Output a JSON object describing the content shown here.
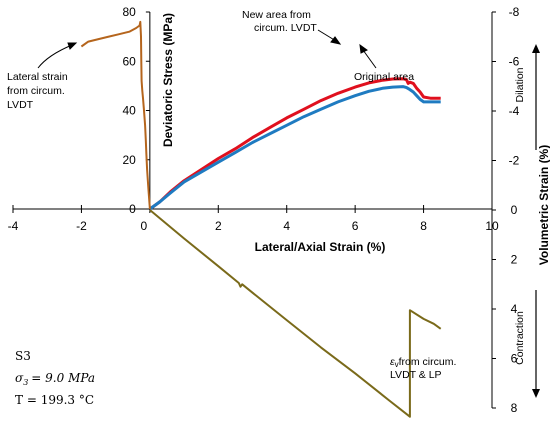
{
  "chart_data": {
    "type": "line",
    "x_axis": {
      "label": "Lateral/Axial Strain (%)",
      "range": [
        -4,
        10
      ],
      "ticks": [
        -4,
        -2,
        0,
        2,
        4,
        6,
        8,
        10
      ]
    },
    "y_left": {
      "label": "Deviatoric Stress (MPa)",
      "range": [
        0,
        80
      ],
      "ticks": [
        0,
        20,
        40,
        60,
        80
      ]
    },
    "y_right": {
      "label": "Volumetric  Strain (%)",
      "range": [
        8,
        -8
      ],
      "ticks": [
        -8,
        -6,
        -4,
        -2,
        0,
        2,
        4,
        6,
        8
      ],
      "tick_labels": [
        "-8",
        "-6",
        "-4",
        "-2",
        "0",
        "2",
        "4",
        "6",
        "8"
      ],
      "upper_label": "Dilation",
      "lower_label": "Contraction"
    },
    "series": [
      {
        "name": "New area from circum. LVDT",
        "axis": "left",
        "color": "#e0101e",
        "points": [
          [
            0,
            0
          ],
          [
            0.3,
            3
          ],
          [
            0.6,
            7
          ],
          [
            1,
            11.5
          ],
          [
            1.5,
            16
          ],
          [
            2,
            20.5
          ],
          [
            2.5,
            24.5
          ],
          [
            3,
            29
          ],
          [
            3.5,
            33
          ],
          [
            4,
            37
          ],
          [
            4.5,
            40.5
          ],
          [
            5,
            44
          ],
          [
            5.5,
            47
          ],
          [
            6,
            49.5
          ],
          [
            6.4,
            51.2
          ],
          [
            6.8,
            52.3
          ],
          [
            7.1,
            52.8
          ],
          [
            7.4,
            52.9
          ],
          [
            7.5,
            52.5
          ],
          [
            7.55,
            51
          ],
          [
            7.6,
            51.5
          ],
          [
            7.7,
            51
          ],
          [
            7.8,
            49
          ],
          [
            7.9,
            47.5
          ],
          [
            8,
            45.5
          ],
          [
            8.2,
            45
          ],
          [
            8.5,
            45
          ]
        ]
      },
      {
        "name": "Original area",
        "axis": "left",
        "color": "#1f7bc1",
        "points": [
          [
            0,
            0
          ],
          [
            0.3,
            3
          ],
          [
            0.6,
            6.5
          ],
          [
            1,
            11
          ],
          [
            1.5,
            15
          ],
          [
            2,
            19
          ],
          [
            2.5,
            23
          ],
          [
            3,
            27
          ],
          [
            3.5,
            30.5
          ],
          [
            4,
            34
          ],
          [
            4.5,
            37.5
          ],
          [
            5,
            40.5
          ],
          [
            5.5,
            43.5
          ],
          [
            6,
            46
          ],
          [
            6.4,
            47.8
          ],
          [
            6.8,
            49
          ],
          [
            7.1,
            49.5
          ],
          [
            7.4,
            49.7
          ],
          [
            7.5,
            49.3
          ],
          [
            7.6,
            48.5
          ],
          [
            7.7,
            47.5
          ],
          [
            7.8,
            46
          ],
          [
            7.9,
            44.5
          ],
          [
            8,
            43.5
          ],
          [
            8.2,
            43.5
          ],
          [
            8.5,
            43.5
          ]
        ]
      },
      {
        "name": "Lateral strain from circum. LVDT",
        "axis": "left",
        "color": "#b5651d",
        "points": [
          [
            -2,
            66
          ],
          [
            -1.8,
            68
          ],
          [
            -1.5,
            69
          ],
          [
            -1.2,
            70
          ],
          [
            -0.9,
            71
          ],
          [
            -0.6,
            72
          ],
          [
            -0.4,
            73.5
          ],
          [
            -0.3,
            74.5
          ],
          [
            -0.28,
            76
          ],
          [
            -0.26,
            70
          ],
          [
            -0.25,
            60
          ],
          [
            -0.24,
            52
          ],
          [
            -0.22,
            48
          ],
          [
            -0.2,
            45
          ],
          [
            -0.17,
            40
          ],
          [
            -0.14,
            34
          ],
          [
            -0.12,
            28
          ],
          [
            -0.1,
            22
          ],
          [
            -0.08,
            16
          ],
          [
            -0.05,
            10
          ],
          [
            -0.03,
            6
          ],
          [
            0,
            0
          ]
        ]
      },
      {
        "name": "εv from circum. LVDT & LP",
        "axis": "right",
        "color": "#7a6a1a",
        "points": [
          [
            0,
            0
          ],
          [
            1,
            1.15
          ],
          [
            2,
            2.27
          ],
          [
            2.6,
            2.95
          ],
          [
            2.65,
            3.1
          ],
          [
            2.7,
            3.0
          ],
          [
            3,
            3.34
          ],
          [
            4,
            4.45
          ],
          [
            5,
            5.55
          ],
          [
            6,
            6.6
          ],
          [
            7,
            7.7
          ],
          [
            7.6,
            8.35
          ],
          [
            7.6,
            4.05
          ],
          [
            8,
            4.4
          ],
          [
            8.3,
            4.6
          ],
          [
            8.5,
            4.8
          ]
        ]
      }
    ],
    "annotations": {
      "new_area": [
        "New area from",
        "circum. LVDT"
      ],
      "original_area": "Original area",
      "lateral_strain": [
        "Lateral strain",
        "from circum.",
        "LVDT"
      ],
      "ev_label": [
        "ε",
        "v",
        "from circum.",
        "LVDT & LP"
      ]
    },
    "conditions": {
      "line1": "S3",
      "line2_sym": "σ",
      "line2_sub": "3",
      "line2_rest": "= 9.0 MPa",
      "line3": "T = 199.3 °C"
    },
    "grid": false
  }
}
